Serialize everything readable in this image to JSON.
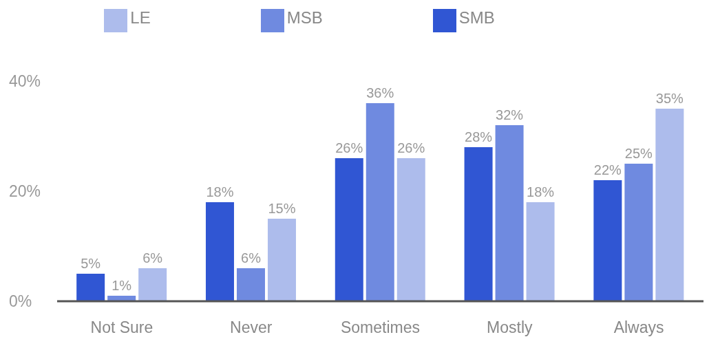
{
  "chart_data": {
    "type": "bar",
    "categories": [
      "Not Sure",
      "Never",
      "Sometimes",
      "Mostly",
      "Always"
    ],
    "series": [
      {
        "name": "SMB",
        "color": "#3056d3",
        "values": [
          5,
          18,
          26,
          28,
          22
        ],
        "value_labels": [
          "5%",
          "18%",
          "26%",
          "28%",
          "22%"
        ]
      },
      {
        "name": "MSB",
        "color": "#6f8ae0",
        "values": [
          1,
          6,
          36,
          32,
          25
        ],
        "value_labels": [
          "1%",
          "6%",
          "36%",
          "32%",
          "25%"
        ]
      },
      {
        "name": "LE",
        "color": "#adbcec",
        "values": [
          6,
          15,
          26,
          18,
          35
        ],
        "value_labels": [
          "6%",
          "15%",
          "26%",
          "18%",
          "35%"
        ]
      }
    ],
    "ylim": [
      0,
      40
    ],
    "yticks": [
      {
        "value": 0,
        "label": "0%"
      },
      {
        "value": 20,
        "label": "20%"
      },
      {
        "value": 40,
        "label": "40%"
      }
    ],
    "grid": false,
    "legend": "top"
  }
}
